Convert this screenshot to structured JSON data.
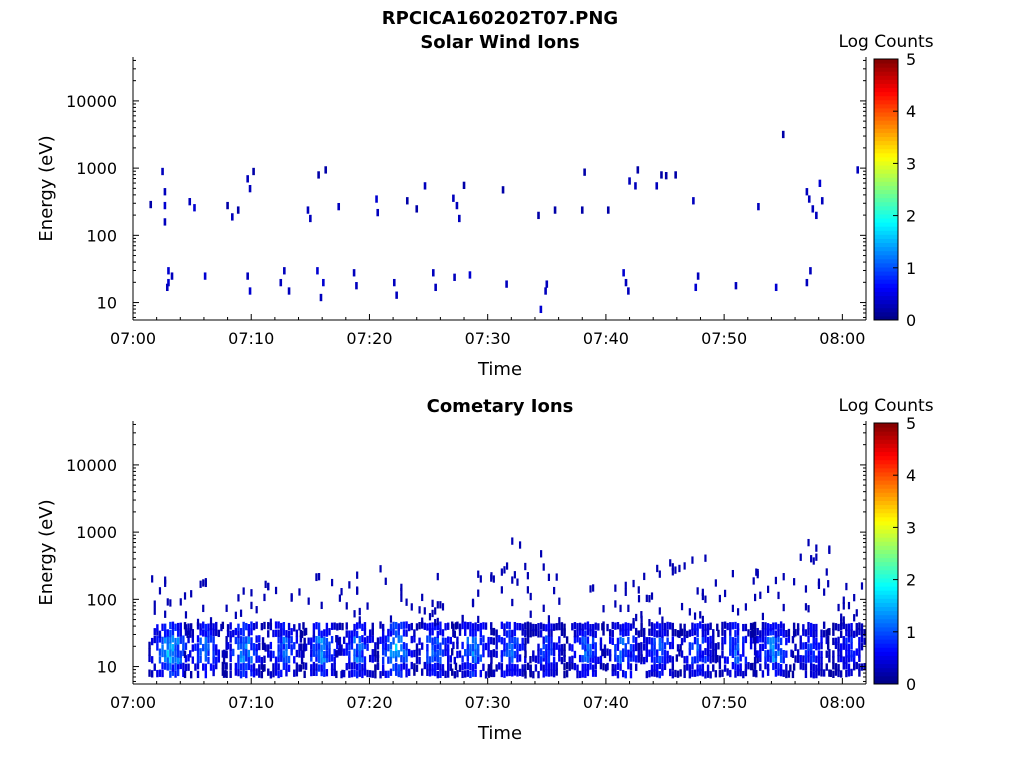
{
  "figure": {
    "suptitle": "RPCICA160202T07.PNG"
  },
  "colors": {
    "axis": "#000000",
    "background": "#ffffff"
  },
  "chart_data": [
    {
      "type": "heatmap",
      "title": "Solar Wind Ions",
      "xlabel": "Time",
      "ylabel": "Energy (eV)",
      "x_ticks": [
        "07:00",
        "07:10",
        "07:20",
        "07:30",
        "07:40",
        "07:50",
        "08:00"
      ],
      "x_range_minutes": [
        0,
        62
      ],
      "y_scale": "log",
      "y_range": [
        5.5,
        45000
      ],
      "y_ticks": [
        "10",
        "100",
        "1000",
        "10000"
      ],
      "colorbar": {
        "title": "Log Counts",
        "min": 0,
        "max": 5,
        "ticks": [
          "0",
          "1",
          "2",
          "3",
          "4",
          "5"
        ],
        "colormap": "jet"
      },
      "cells": [
        [
          2.5,
          900,
          0.3
        ],
        [
          2.7,
          450,
          0.3
        ],
        [
          2.7,
          280,
          0.4
        ],
        [
          2.7,
          160,
          0.3
        ],
        [
          1.5,
          290,
          0.2
        ],
        [
          3.0,
          30,
          0.4
        ],
        [
          3.0,
          20,
          0.4
        ],
        [
          3.3,
          25,
          0.3
        ],
        [
          2.9,
          17,
          0.3
        ],
        [
          4.8,
          320,
          0.3
        ],
        [
          5.2,
          260,
          0.4
        ],
        [
          6.1,
          25,
          0.4
        ],
        [
          8.0,
          280,
          0.2
        ],
        [
          8.4,
          190,
          0.3
        ],
        [
          8.9,
          240,
          0.2
        ],
        [
          9.7,
          700,
          0.3
        ],
        [
          9.9,
          500,
          0.3
        ],
        [
          10.2,
          900,
          0.2
        ],
        [
          9.7,
          25,
          0.3
        ],
        [
          9.9,
          15,
          0.4
        ],
        [
          12.8,
          30,
          0.3
        ],
        [
          12.5,
          20,
          0.3
        ],
        [
          13.2,
          15,
          0.3
        ],
        [
          14.8,
          240,
          0.3
        ],
        [
          15.0,
          180,
          0.3
        ],
        [
          15.7,
          800,
          0.2
        ],
        [
          16.3,
          950,
          0.2
        ],
        [
          15.6,
          30,
          0.4
        ],
        [
          16.1,
          20,
          0.4
        ],
        [
          15.9,
          12,
          0.3
        ],
        [
          17.4,
          270,
          0.3
        ],
        [
          18.7,
          28,
          0.3
        ],
        [
          18.9,
          18,
          0.3
        ],
        [
          20.6,
          350,
          0.4
        ],
        [
          20.7,
          220,
          0.3
        ],
        [
          22.1,
          20,
          0.3
        ],
        [
          22.3,
          13,
          0.3
        ],
        [
          23.2,
          330,
          0.2
        ],
        [
          24.0,
          250,
          0.2
        ],
        [
          24.7,
          550,
          0.3
        ],
        [
          25.4,
          28,
          0.3
        ],
        [
          25.6,
          17,
          0.3
        ],
        [
          27.1,
          360,
          0.3
        ],
        [
          27.4,
          280,
          0.3
        ],
        [
          27.6,
          180,
          0.3
        ],
        [
          28.0,
          560,
          0.2
        ],
        [
          27.2,
          24,
          0.3
        ],
        [
          28.5,
          26,
          0.4
        ],
        [
          31.3,
          480,
          0.2
        ],
        [
          31.6,
          19,
          0.3
        ],
        [
          34.3,
          200,
          0.2
        ],
        [
          34.5,
          8,
          0.4
        ],
        [
          34.9,
          15,
          0.3
        ],
        [
          35.0,
          19,
          0.3
        ],
        [
          35.7,
          240,
          0.2
        ],
        [
          38.0,
          240,
          0.2
        ],
        [
          38.2,
          880,
          0.2
        ],
        [
          40.2,
          240,
          0.2
        ],
        [
          41.5,
          28,
          0.4
        ],
        [
          41.7,
          20,
          0.3
        ],
        [
          41.9,
          15,
          0.3
        ],
        [
          42.0,
          650,
          0.3
        ],
        [
          42.5,
          550,
          0.3
        ],
        [
          42.7,
          950,
          0.2
        ],
        [
          44.3,
          550,
          0.3
        ],
        [
          44.7,
          800,
          0.2
        ],
        [
          45.1,
          780,
          0.2
        ],
        [
          45.9,
          800,
          0.2
        ],
        [
          47.4,
          330,
          0.3
        ],
        [
          47.6,
          17,
          0.4
        ],
        [
          47.8,
          25,
          0.3
        ],
        [
          51.0,
          18,
          0.3
        ],
        [
          52.9,
          270,
          0.3
        ],
        [
          54.4,
          17,
          0.4
        ],
        [
          55.0,
          3200,
          0.2
        ],
        [
          57.0,
          450,
          0.3
        ],
        [
          57.2,
          350,
          0.3
        ],
        [
          57.5,
          250,
          0.3
        ],
        [
          57.8,
          200,
          0.3
        ],
        [
          58.1,
          600,
          0.4
        ],
        [
          58.3,
          330,
          0.3
        ],
        [
          57.0,
          20,
          0.3
        ],
        [
          57.3,
          30,
          0.3
        ],
        [
          61.3,
          950,
          0.3
        ]
      ]
    },
    {
      "type": "heatmap",
      "title": "Cometary Ions",
      "xlabel": "Time",
      "ylabel": "Energy (eV)",
      "x_ticks": [
        "07:00",
        "07:10",
        "07:20",
        "07:30",
        "07:40",
        "07:50",
        "08:00"
      ],
      "x_range_minutes": [
        0,
        62
      ],
      "y_scale": "log",
      "y_range": [
        5.5,
        45000
      ],
      "y_ticks": [
        "10",
        "100",
        "1000",
        "10000"
      ],
      "colorbar": {
        "title": "Log Counts",
        "min": 0,
        "max": 5,
        "ticks": [
          "0",
          "1",
          "2",
          "3",
          "4",
          "5"
        ],
        "colormap": "jet"
      },
      "bursts": [
        {
          "t": 3.2,
          "strength": 1.4,
          "tail": 220
        },
        {
          "t": 6.2,
          "strength": 1.0,
          "tail": 280
        },
        {
          "t": 9.4,
          "strength": 1.2,
          "tail": 180
        },
        {
          "t": 12.8,
          "strength": 1.0,
          "tail": 220
        },
        {
          "t": 16.0,
          "strength": 1.1,
          "tail": 240
        },
        {
          "t": 19.0,
          "strength": 1.0,
          "tail": 260
        },
        {
          "t": 22.3,
          "strength": 1.3,
          "tail": 300
        },
        {
          "t": 25.6,
          "strength": 1.0,
          "tail": 230
        },
        {
          "t": 28.8,
          "strength": 1.1,
          "tail": 240
        },
        {
          "t": 31.9,
          "strength": 1.0,
          "tail": 750
        },
        {
          "t": 35.0,
          "strength": 0.8,
          "tail": 500
        },
        {
          "t": 38.3,
          "strength": 1.0,
          "tail": 250
        },
        {
          "t": 41.5,
          "strength": 1.0,
          "tail": 210
        },
        {
          "t": 44.6,
          "strength": 0.9,
          "tail": 380
        },
        {
          "t": 47.8,
          "strength": 0.9,
          "tail": 450
        },
        {
          "t": 51.0,
          "strength": 0.9,
          "tail": 300
        },
        {
          "t": 54.2,
          "strength": 1.1,
          "tail": 270
        },
        {
          "t": 57.4,
          "strength": 0.8,
          "tail": 900
        },
        {
          "t": 60.6,
          "strength": 0.7,
          "tail": 200
        }
      ]
    }
  ]
}
